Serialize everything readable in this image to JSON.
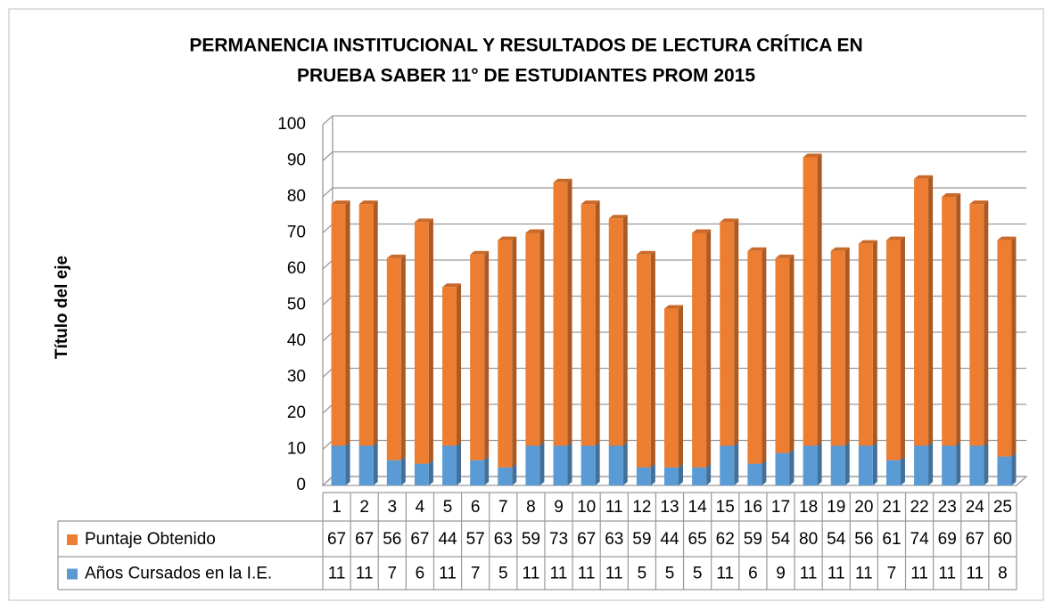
{
  "chart_data": {
    "type": "bar",
    "stacked": true,
    "title": [
      "PERMANENCIA INSTITUCIONAL Y RESULTADOS DE LECTURA CRÍTICA EN",
      "PRUEBA SABER 11° DE ESTUDIANTES PROM 2015"
    ],
    "y_label": "Título del eje",
    "categories": [
      "1",
      "2",
      "3",
      "4",
      "5",
      "6",
      "7",
      "8",
      "9",
      "10",
      "11",
      "12",
      "13",
      "14",
      "15",
      "16",
      "17",
      "18",
      "19",
      "20",
      "21",
      "22",
      "23",
      "24",
      "25"
    ],
    "series": [
      {
        "name": "Años Cursados en la I.E.",
        "color": "#5b9bd5",
        "values": [
          11,
          11,
          7,
          6,
          11,
          7,
          5,
          11,
          11,
          11,
          11,
          5,
          5,
          5,
          11,
          6,
          9,
          11,
          11,
          11,
          7,
          11,
          11,
          11,
          8
        ]
      },
      {
        "name": "Puntaje Obtenido",
        "color": "#ed7d31",
        "values": [
          67,
          67,
          56,
          67,
          44,
          57,
          63,
          59,
          73,
          67,
          63,
          59,
          44,
          65,
          62,
          59,
          54,
          80,
          54,
          56,
          61,
          74,
          69,
          67,
          60
        ]
      }
    ],
    "ylim": [
      0,
      100
    ],
    "yticks": [
      0,
      10,
      20,
      30,
      40,
      50,
      60,
      70,
      80,
      90,
      100
    ],
    "grid": true,
    "data_table": true
  }
}
